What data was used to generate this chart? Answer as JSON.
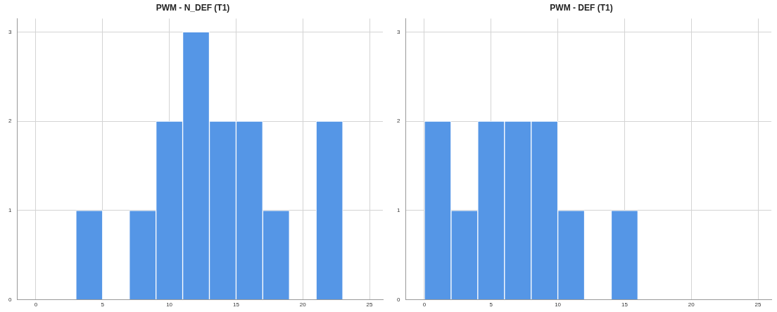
{
  "chart_data": [
    {
      "type": "histogram",
      "title": "PWM - N_DEF (T1)",
      "bins": [
        3,
        5,
        7,
        9,
        11,
        13,
        15,
        17,
        19,
        21,
        23
      ],
      "values": [
        1,
        0,
        1,
        2,
        3,
        2,
        2,
        1,
        0,
        2
      ],
      "color": "#5596e6",
      "xlim": [
        -1.4,
        26
      ],
      "xticks": [
        0,
        5,
        10,
        15,
        20,
        25
      ],
      "ylim": [
        0,
        3.15
      ],
      "yticks": [
        0,
        1,
        2,
        3
      ],
      "grid": true,
      "legend": false
    },
    {
      "type": "histogram",
      "title": "PWM - DEF (T1)",
      "bins": [
        0,
        2,
        4,
        6,
        8,
        10,
        12,
        14,
        16
      ],
      "values": [
        2,
        1,
        2,
        2,
        2,
        1,
        0,
        1
      ],
      "color": "#5596e6",
      "xlim": [
        -1.4,
        26
      ],
      "xticks": [
        0,
        5,
        10,
        15,
        20,
        25
      ],
      "ylim": [
        0,
        3.15
      ],
      "yticks": [
        0,
        1,
        2,
        3
      ],
      "grid": true,
      "legend": false
    }
  ]
}
